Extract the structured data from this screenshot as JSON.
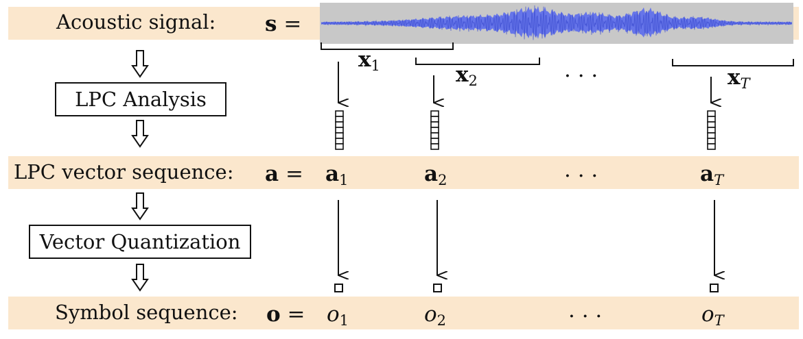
{
  "rows": {
    "acoustic": {
      "label": "Acoustic signal:",
      "symbol": "s",
      "equals": "="
    },
    "lpc_vectors": {
      "label": "LPC vector sequence:",
      "symbol": "a",
      "equals": "=",
      "items": [
        {
          "base": "a",
          "sub": "1"
        },
        {
          "base": "a",
          "sub": "2"
        },
        {
          "base": "· · ·",
          "sub": ""
        },
        {
          "base": "a",
          "sub": "T"
        }
      ]
    },
    "symbols": {
      "label": "Symbol sequence:",
      "symbol": "o",
      "equals": "=",
      "items": [
        {
          "base": "o",
          "sub": "1"
        },
        {
          "base": "o",
          "sub": "2"
        },
        {
          "base": "· · ·",
          "sub": ""
        },
        {
          "base": "o",
          "sub": "T"
        }
      ]
    }
  },
  "frames": [
    {
      "base": "x",
      "sub": "1"
    },
    {
      "base": "x",
      "sub": "2"
    },
    {
      "base": "· · ·",
      "sub": ""
    },
    {
      "base": "x",
      "sub": "T"
    }
  ],
  "processes": {
    "lpc": "LPC Analysis",
    "vq": "Vector Quantization"
  },
  "colors": {
    "band": "#fbe7cd",
    "waveform": "#5566ee",
    "waveform_bg": "#c8c8c8"
  }
}
